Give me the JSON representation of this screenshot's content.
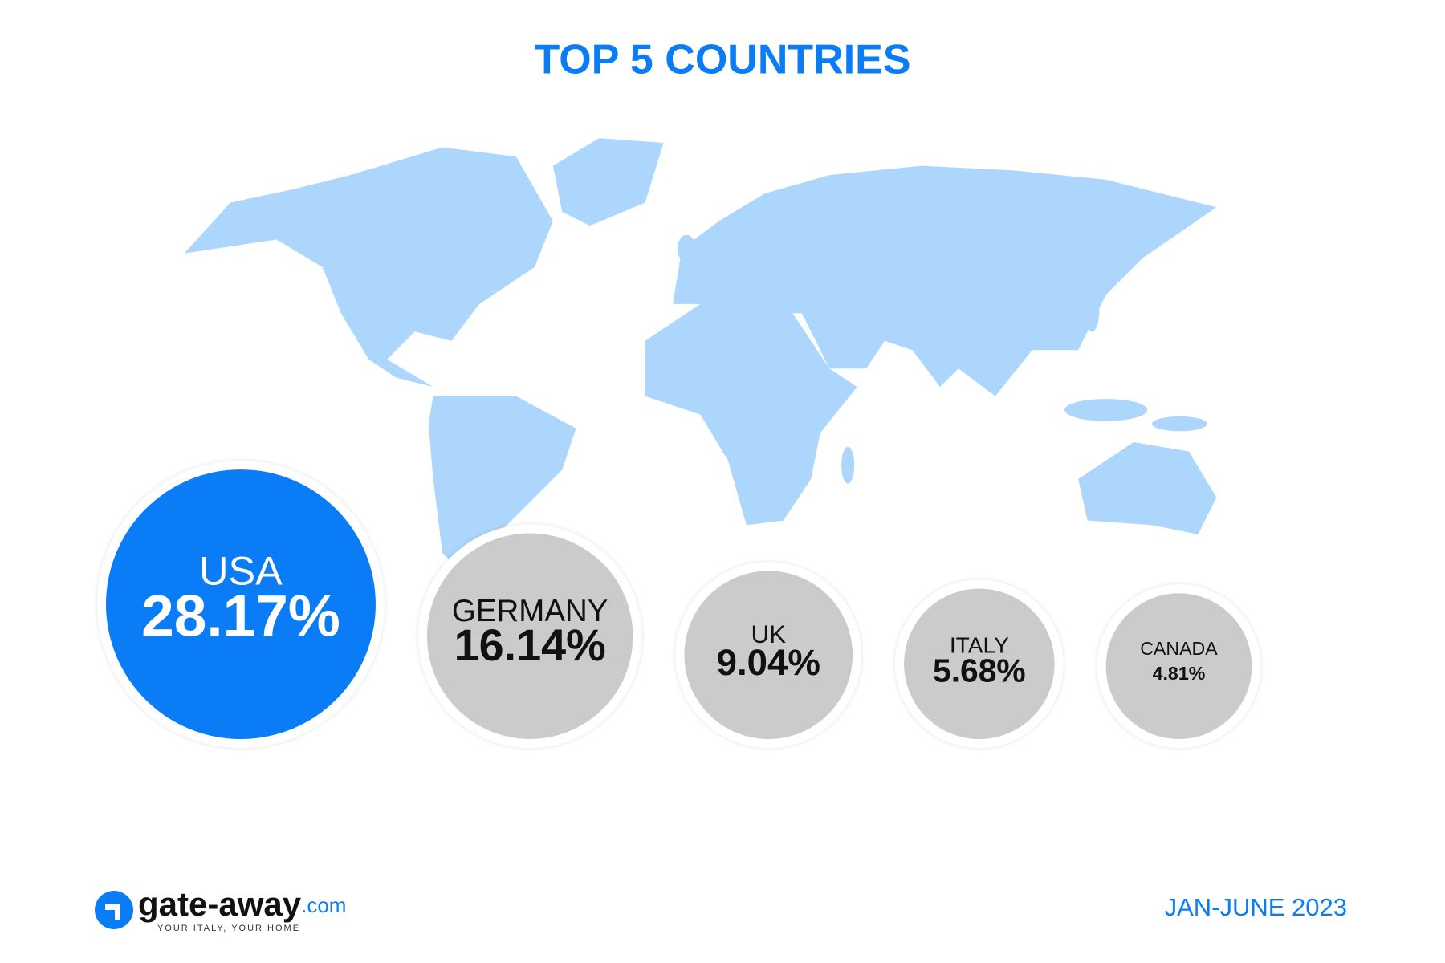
{
  "chart_data": {
    "type": "bubble",
    "title": "TOP 5 COUNTRIES",
    "categories": [
      "USA",
      "GERMANY",
      "UK",
      "ITALY",
      "CANADA"
    ],
    "values": [
      28.17,
      16.14,
      9.04,
      5.68,
      4.81
    ],
    "value_labels": [
      "28.17%",
      "16.14%",
      "9.04%",
      "5.68%",
      "4.81%"
    ],
    "colors": [
      "#0a7cf5",
      "#cbcbcb",
      "#cbcbcb",
      "#cbcbcb",
      "#cbcbcb"
    ]
  },
  "period": "JAN-JUNE 2023",
  "brand": {
    "name": "gate-away",
    "domain": ".com",
    "tagline": "YOUR ITALY, YOUR HOME"
  }
}
